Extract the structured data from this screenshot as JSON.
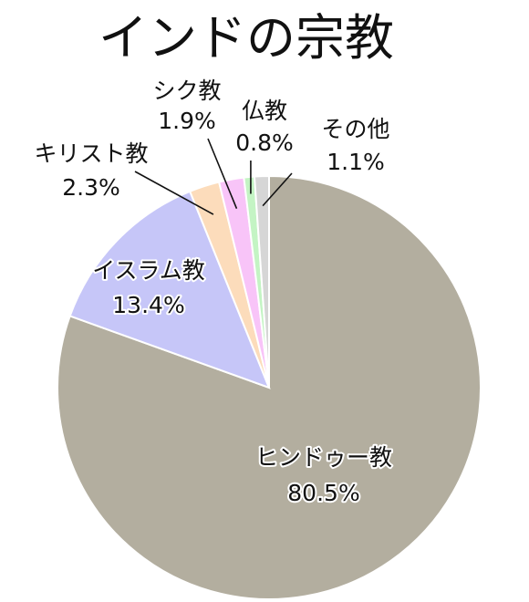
{
  "chart_data": {
    "type": "pie",
    "title": "インドの宗教",
    "slices": [
      {
        "label": "ヒンドゥー教",
        "value": 80.5,
        "value_label": "80.5%",
        "color": "#b3ae9f"
      },
      {
        "label": "イスラム教",
        "value": 13.4,
        "value_label": "13.4%",
        "color": "#c6c6f8"
      },
      {
        "label": "キリスト教",
        "value": 2.3,
        "value_label": "2.3%",
        "color": "#fcdcbb"
      },
      {
        "label": "シク教",
        "value": 1.9,
        "value_label": "1.9%",
        "color": "#f8c4f8"
      },
      {
        "label": "仏教",
        "value": 0.8,
        "value_label": "0.8%",
        "color": "#c4f4c4"
      },
      {
        "label": "その他",
        "value": 1.1,
        "value_label": "1.1%",
        "color": "#d6d6d6"
      }
    ]
  }
}
